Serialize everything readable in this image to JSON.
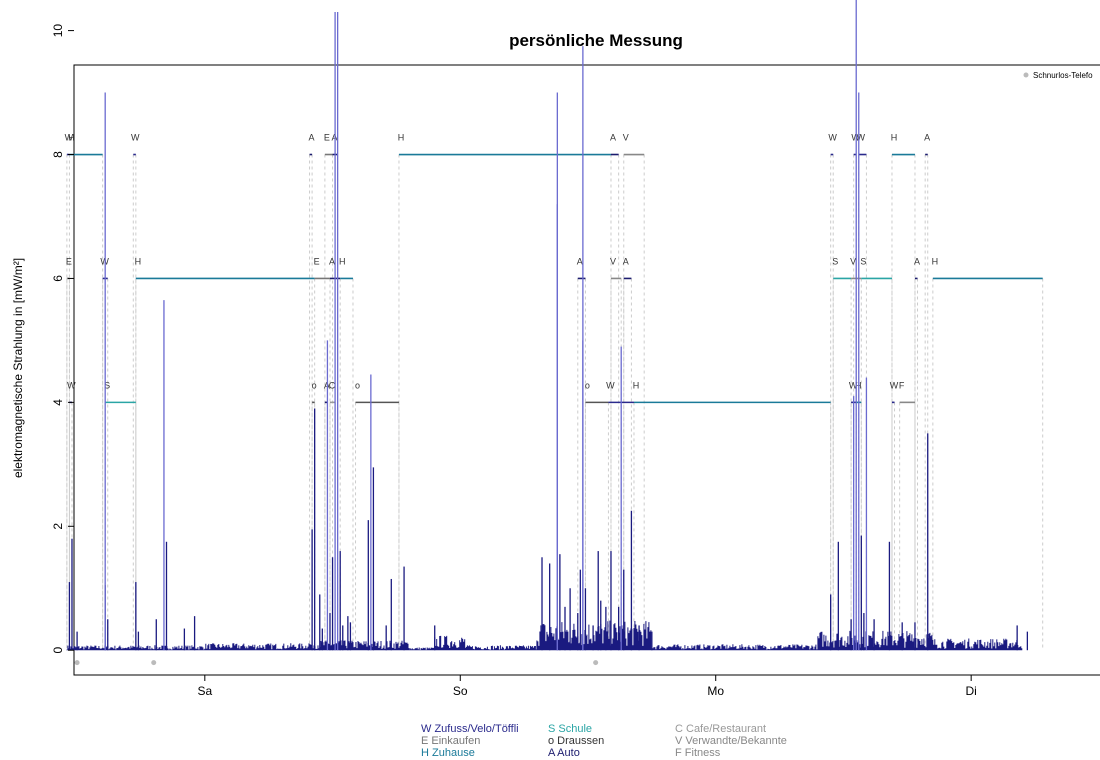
{
  "chart_data": {
    "type": "line",
    "title": "persönliche Messung",
    "xlabel": "",
    "ylabel": "elektromagnetische Strahlung in [mW/m²]",
    "xlim": [
      0,
      4.22
    ],
    "ylim": [
      -0.4,
      10.3
    ],
    "y_ticks": [
      0,
      2,
      4,
      6,
      8,
      10
    ],
    "x_ticks": [
      {
        "value": 0.7,
        "label": "Sa"
      },
      {
        "value": 1.7,
        "label": "So"
      },
      {
        "value": 2.7,
        "label": "Mo"
      },
      {
        "value": 3.7,
        "label": "Di"
      }
    ],
    "corner_legend": {
      "label": "Schnurlos-Telefo",
      "color": "#bbbbbb"
    },
    "phone_events": [
      0.2,
      0.5,
      2.23
    ],
    "grid": false,
    "series_color": "#1a1a80",
    "spikes": [
      [
        0.17,
        1.1
      ],
      [
        0.18,
        1.8
      ],
      [
        0.2,
        0.3
      ],
      [
        0.31,
        1.05
      ],
      [
        0.31,
        9.0
      ],
      [
        0.32,
        0.5
      ],
      [
        0.43,
        1.1
      ],
      [
        0.44,
        0.3
      ],
      [
        0.51,
        0.5
      ],
      [
        0.54,
        5.65
      ],
      [
        0.55,
        1.75
      ],
      [
        0.62,
        0.35
      ],
      [
        0.66,
        0.55
      ],
      [
        1.12,
        1.95
      ],
      [
        1.13,
        3.9
      ],
      [
        1.15,
        0.9
      ],
      [
        1.16,
        0.35
      ],
      [
        1.18,
        5.0
      ],
      [
        1.19,
        0.6
      ],
      [
        1.2,
        1.5
      ],
      [
        1.21,
        10.3
      ],
      [
        1.22,
        10.3
      ],
      [
        1.23,
        1.6
      ],
      [
        1.24,
        0.4
      ],
      [
        1.26,
        0.55
      ],
      [
        1.27,
        0.45
      ],
      [
        1.34,
        2.1
      ],
      [
        1.35,
        4.45
      ],
      [
        1.36,
        2.95
      ],
      [
        1.41,
        0.4
      ],
      [
        1.43,
        1.15
      ],
      [
        1.48,
        1.35
      ],
      [
        1.6,
        0.4
      ],
      [
        2.02,
        1.5
      ],
      [
        2.05,
        1.4
      ],
      [
        2.08,
        7.2
      ],
      [
        2.08,
        9.0
      ],
      [
        2.09,
        1.55
      ],
      [
        2.11,
        0.7
      ],
      [
        2.13,
        1.0
      ],
      [
        2.16,
        0.6
      ],
      [
        2.17,
        1.3
      ],
      [
        2.18,
        5.0
      ],
      [
        2.18,
        9.75
      ],
      [
        2.19,
        1.0
      ],
      [
        2.22,
        0.4
      ],
      [
        2.24,
        1.6
      ],
      [
        2.25,
        0.8
      ],
      [
        2.27,
        0.7
      ],
      [
        2.29,
        1.6
      ],
      [
        2.32,
        0.7
      ],
      [
        2.33,
        4.9
      ],
      [
        2.34,
        1.3
      ],
      [
        2.37,
        2.25
      ],
      [
        2.4,
        0.4
      ],
      [
        2.45,
        0.3
      ],
      [
        3.15,
        0.9
      ],
      [
        3.18,
        1.75
      ],
      [
        3.23,
        0.5
      ],
      [
        3.24,
        4.1
      ],
      [
        3.25,
        10.9
      ],
      [
        3.26,
        9.0
      ],
      [
        3.27,
        1.85
      ],
      [
        3.28,
        0.6
      ],
      [
        3.29,
        4.4
      ],
      [
        3.32,
        0.5
      ],
      [
        3.38,
        1.75
      ],
      [
        3.43,
        0.45
      ],
      [
        3.48,
        0.45
      ],
      [
        3.53,
        3.5
      ],
      [
        3.88,
        0.4
      ],
      [
        3.92,
        0.3
      ]
    ],
    "baseline_segments": [
      {
        "from": 0.16,
        "to": 0.7,
        "level": 0.05
      },
      {
        "from": 0.7,
        "to": 1.1,
        "level": 0.07
      },
      {
        "from": 1.1,
        "to": 1.5,
        "level": 0.1
      },
      {
        "from": 1.5,
        "to": 1.6,
        "level": 0.03
      },
      {
        "from": 1.6,
        "to": 1.72,
        "level": 0.15
      },
      {
        "from": 1.72,
        "to": 2.0,
        "level": 0.05
      },
      {
        "from": 2.0,
        "to": 2.45,
        "level": 0.3
      },
      {
        "from": 2.45,
        "to": 3.1,
        "level": 0.06
      },
      {
        "from": 3.1,
        "to": 3.55,
        "level": 0.2
      },
      {
        "from": 3.55,
        "to": 3.9,
        "level": 0.12
      }
    ],
    "activity_rows": [
      {
        "level": 8,
        "segments": [
          {
            "label": "W",
            "start": 0.16,
            "end": 0.17,
            "code": "W"
          },
          {
            "label": "H",
            "start": 0.17,
            "end": 0.3,
            "code": "H"
          },
          {
            "label": "W",
            "start": 0.42,
            "end": 0.43,
            "code": "W"
          },
          {
            "label": "A",
            "start": 1.11,
            "end": 1.12,
            "code": "A"
          },
          {
            "label": "E",
            "start": 1.17,
            "end": 1.2,
            "code": "E"
          },
          {
            "label": "A",
            "start": 1.2,
            "end": 1.22,
            "code": "A"
          },
          {
            "label": "H",
            "start": 1.46,
            "end": 2.29,
            "code": "H"
          },
          {
            "label": "A",
            "start": 2.29,
            "end": 2.32,
            "code": "A"
          },
          {
            "label": "V",
            "start": 2.34,
            "end": 2.42,
            "code": "V"
          },
          {
            "label": "W",
            "start": 3.15,
            "end": 3.16,
            "code": "W"
          },
          {
            "label": "W",
            "start": 3.24,
            "end": 3.25,
            "code": "W"
          },
          {
            "label": "W",
            "start": 3.26,
            "end": 3.29,
            "code": "W"
          },
          {
            "label": "H",
            "start": 3.39,
            "end": 3.48,
            "code": "H"
          },
          {
            "label": "A",
            "start": 3.52,
            "end": 3.53,
            "code": "A"
          }
        ]
      },
      {
        "level": 6,
        "segments": [
          {
            "label": "E",
            "start": 0.16,
            "end": 0.17,
            "code": "E"
          },
          {
            "label": "W",
            "start": 0.3,
            "end": 0.32,
            "code": "W"
          },
          {
            "label": "H",
            "start": 0.43,
            "end": 1.13,
            "code": "H"
          },
          {
            "label": "E",
            "start": 1.13,
            "end": 1.19,
            "code": "E"
          },
          {
            "label": "A",
            "start": 1.19,
            "end": 1.23,
            "code": "A"
          },
          {
            "label": "H",
            "start": 1.23,
            "end": 1.28,
            "code": "H"
          },
          {
            "label": "A",
            "start": 2.16,
            "end": 2.19,
            "code": "A"
          },
          {
            "label": "V",
            "start": 2.29,
            "end": 2.33,
            "code": "V"
          },
          {
            "label": "A",
            "start": 2.34,
            "end": 2.37,
            "code": "A"
          },
          {
            "label": "S",
            "start": 3.16,
            "end": 3.23,
            "code": "S"
          },
          {
            "label": "V",
            "start": 3.23,
            "end": 3.27,
            "code": "V"
          },
          {
            "label": "S",
            "start": 3.27,
            "end": 3.39,
            "code": "S"
          },
          {
            "label": "A",
            "start": 3.48,
            "end": 3.49,
            "code": "A"
          },
          {
            "label": "H",
            "start": 3.55,
            "end": 3.98,
            "code": "H"
          }
        ]
      },
      {
        "level": 4,
        "segments": [
          {
            "label": "W",
            "start": 0.17,
            "end": 0.18,
            "code": "W"
          },
          {
            "label": "S",
            "start": 0.31,
            "end": 0.43,
            "code": "S"
          },
          {
            "label": "o",
            "start": 1.12,
            "end": 1.13,
            "code": "o"
          },
          {
            "label": "A",
            "start": 1.17,
            "end": 1.18,
            "code": "A"
          },
          {
            "label": "C",
            "start": 1.19,
            "end": 1.21,
            "code": "C"
          },
          {
            "label": "o",
            "start": 1.29,
            "end": 1.46,
            "code": "o"
          },
          {
            "label": "o",
            "start": 2.19,
            "end": 2.28,
            "code": "o"
          },
          {
            "label": "W",
            "start": 2.28,
            "end": 2.38,
            "code": "W"
          },
          {
            "label": "H",
            "start": 2.38,
            "end": 3.15,
            "code": "H"
          },
          {
            "label": "W",
            "start": 3.23,
            "end": 3.25,
            "code": "W"
          },
          {
            "label": "H",
            "start": 3.25,
            "end": 3.27,
            "code": "H"
          },
          {
            "label": "W",
            "start": 3.39,
            "end": 3.4,
            "code": "W"
          },
          {
            "label": "F",
            "start": 3.42,
            "end": 3.48,
            "code": "F"
          }
        ]
      }
    ],
    "activity_colors": {
      "W": "#2a2a8c",
      "E": "#777777",
      "H": "#1a7a99",
      "S": "#2aa5a5",
      "o": "#555555",
      "A": "#1c1c6e",
      "C": "#999999",
      "V": "#888888",
      "F": "#888888"
    },
    "legend": {
      "columns": [
        [
          {
            "text": "W Zufuss/Velo/Töffli",
            "color": "#2a2a8c"
          },
          {
            "text": "E Einkaufen",
            "color": "#777777"
          },
          {
            "text": "H Zuhause",
            "color": "#1a7a99"
          }
        ],
        [
          {
            "text": "S Schule",
            "color": "#2aa5a5"
          },
          {
            "text": "o Draussen",
            "color": "#333333"
          },
          {
            "text": "A Auto",
            "color": "#1c1c6e"
          }
        ],
        [
          {
            "text": "C Cafe/Restaurant",
            "color": "#999999"
          },
          {
            "text": "V Verwandte/Bekannte",
            "color": "#888888"
          },
          {
            "text": "F Fitness",
            "color": "#888888"
          }
        ]
      ]
    }
  }
}
